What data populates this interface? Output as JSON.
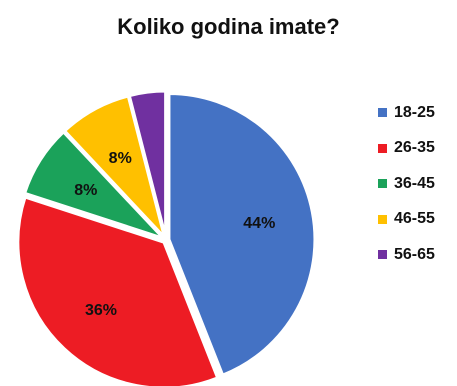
{
  "chart_data": {
    "type": "pie",
    "title": "Koliko godina imate?",
    "categories": [
      "18-25",
      "26-35",
      "36-45",
      "46-55",
      "56-65"
    ],
    "values": [
      44,
      36,
      8,
      8,
      4
    ],
    "data_labels": [
      "44%",
      "36%",
      "8%",
      "8%",
      ""
    ],
    "colors": [
      "#4472C4",
      "#ED1C24",
      "#1BA25A",
      "#FFC000",
      "#7030A0"
    ],
    "legend_position": "right"
  }
}
